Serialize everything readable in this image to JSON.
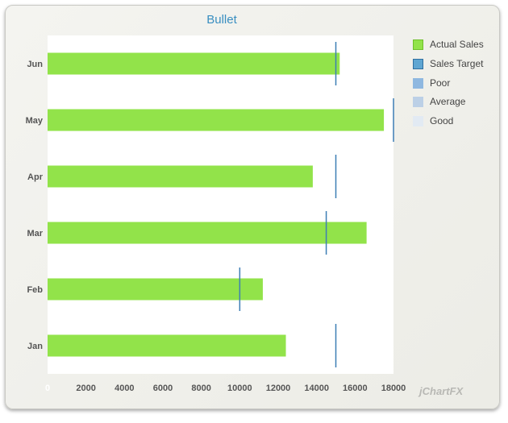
{
  "chart_data": {
    "type": "bar",
    "orientation": "horizontal",
    "title": "Bullet",
    "categories": [
      "Jan",
      "Feb",
      "Mar",
      "Apr",
      "May",
      "Jun"
    ],
    "series": [
      {
        "name": "Actual Sales",
        "values": [
          12400,
          11200,
          16600,
          13800,
          17500,
          15200
        ],
        "color": "#92e34a"
      },
      {
        "name": "Sales Target",
        "values": [
          15000,
          10000,
          14500,
          15000,
          18000,
          15000
        ],
        "color": "#3d7eb5"
      }
    ],
    "ranges": [
      {
        "name": "Poor",
        "color": "#8fb8e0"
      },
      {
        "name": "Average",
        "color": "#bcd0e6"
      },
      {
        "name": "Good",
        "color": "#e2eaf3"
      }
    ],
    "xlim": [
      0,
      18000
    ],
    "xticks": [
      0,
      2000,
      4000,
      6000,
      8000,
      10000,
      12000,
      14000,
      16000,
      18000
    ],
    "legend": "right",
    "grid": false
  },
  "brand": "jChartFX"
}
